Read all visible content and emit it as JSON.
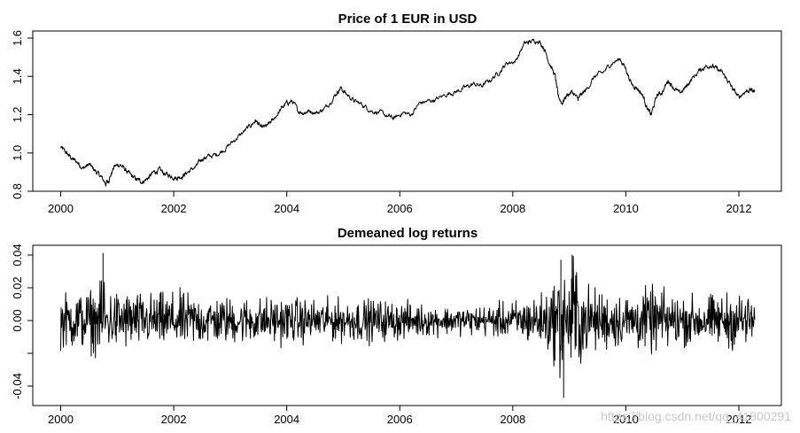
{
  "chart_data": [
    {
      "type": "line",
      "title": "Price of 1 EUR in USD",
      "xlabel": "",
      "ylabel": "",
      "xlim": [
        2000.0,
        2012.3
      ],
      "ylim": [
        0.8,
        1.62
      ],
      "x_ticks": [
        2000,
        2002,
        2004,
        2006,
        2008,
        2010,
        2012
      ],
      "y_ticks": [
        0.8,
        1.0,
        1.2,
        1.4,
        1.6
      ],
      "y_tick_labels": [
        "0.8",
        "1.0",
        "1.2",
        "1.4",
        "1.6"
      ],
      "grid": false,
      "series": [
        {
          "x": [
            2000.0,
            2000.1,
            2000.2,
            2000.3,
            2000.4,
            2000.5,
            2000.6,
            2000.7,
            2000.8,
            2000.85,
            2000.95,
            2001.05,
            2001.15,
            2001.25,
            2001.35,
            2001.45,
            2001.55,
            2001.65,
            2001.75,
            2001.85,
            2001.95,
            2002.05,
            2002.15,
            2002.25,
            2002.4,
            2002.5,
            2002.6,
            2002.75,
            2002.9,
            2003.05,
            2003.2,
            2003.35,
            2003.45,
            2003.55,
            2003.65,
            2003.75,
            2003.9,
            2004.0,
            2004.1,
            2004.2,
            2004.3,
            2004.4,
            2004.55,
            2004.7,
            2004.85,
            2004.95,
            2005.05,
            2005.2,
            2005.35,
            2005.5,
            2005.65,
            2005.8,
            2005.9,
            2006.05,
            2006.2,
            2006.35,
            2006.5,
            2006.65,
            2006.85,
            2007.0,
            2007.15,
            2007.3,
            2007.45,
            2007.6,
            2007.75,
            2007.9,
            2008.05,
            2008.2,
            2008.3,
            2008.45,
            2008.55,
            2008.65,
            2008.75,
            2008.8,
            2008.87,
            2008.95,
            2009.05,
            2009.15,
            2009.2,
            2009.3,
            2009.45,
            2009.6,
            2009.75,
            2009.9,
            2010.0,
            2010.1,
            2010.2,
            2010.3,
            2010.4,
            2010.45,
            2010.55,
            2010.65,
            2010.75,
            2010.85,
            2010.95,
            2011.05,
            2011.15,
            2011.3,
            2011.4,
            2011.5,
            2011.6,
            2011.7,
            2011.8,
            2011.9,
            2012.0,
            2012.1,
            2012.2,
            2012.28
          ],
          "values": [
            1.03,
            1.0,
            0.97,
            0.95,
            0.92,
            0.94,
            0.91,
            0.88,
            0.84,
            0.86,
            0.93,
            0.94,
            0.91,
            0.88,
            0.86,
            0.85,
            0.87,
            0.9,
            0.91,
            0.89,
            0.88,
            0.87,
            0.88,
            0.9,
            0.93,
            0.97,
            0.98,
            0.99,
            1.02,
            1.06,
            1.1,
            1.14,
            1.17,
            1.13,
            1.14,
            1.17,
            1.23,
            1.26,
            1.27,
            1.22,
            1.21,
            1.22,
            1.21,
            1.24,
            1.3,
            1.34,
            1.31,
            1.27,
            1.25,
            1.22,
            1.21,
            1.19,
            1.18,
            1.21,
            1.2,
            1.26,
            1.27,
            1.28,
            1.31,
            1.32,
            1.34,
            1.36,
            1.35,
            1.38,
            1.42,
            1.47,
            1.48,
            1.57,
            1.58,
            1.59,
            1.55,
            1.47,
            1.4,
            1.3,
            1.26,
            1.3,
            1.32,
            1.28,
            1.3,
            1.33,
            1.4,
            1.42,
            1.47,
            1.49,
            1.44,
            1.36,
            1.34,
            1.3,
            1.22,
            1.2,
            1.3,
            1.32,
            1.38,
            1.34,
            1.31,
            1.34,
            1.38,
            1.43,
            1.45,
            1.46,
            1.44,
            1.42,
            1.38,
            1.33,
            1.29,
            1.32,
            1.33,
            1.32
          ]
        }
      ]
    },
    {
      "type": "line",
      "title": "Demeaned log returns",
      "xlabel": "",
      "ylabel": "",
      "xlim": [
        2000.0,
        2012.3
      ],
      "ylim": [
        -0.049,
        0.043
      ],
      "x_ticks": [
        2000,
        2002,
        2004,
        2006,
        2008,
        2010,
        2012
      ],
      "y_ticks": [
        -0.04,
        -0.02,
        0.0,
        0.02,
        0.04
      ],
      "y_tick_labels": [
        "-0.04",
        "",
        "0.00",
        "0.02",
        "0.04"
      ],
      "grid": false,
      "series": [
        {
          "x": [
            2000.0,
            2000.25,
            2000.5,
            2000.7,
            2000.75,
            2000.8,
            2001.0,
            2001.25,
            2001.5,
            2001.75,
            2002.0,
            2002.5,
            2003.0,
            2003.5,
            2004.0,
            2004.5,
            2005.0,
            2005.5,
            2006.0,
            2006.5,
            2007.0,
            2007.5,
            2008.0,
            2008.5,
            2008.8,
            2008.85,
            2008.9,
            2008.92,
            2009.0,
            2009.05,
            2009.25,
            2009.5,
            2010.0,
            2010.5,
            2011.0,
            2011.5,
            2012.0,
            2012.28
          ],
          "amplitude": [
            0.014,
            0.015,
            0.016,
            0.017,
            0.041,
            0.016,
            0.016,
            0.015,
            0.014,
            0.014,
            0.015,
            0.013,
            0.012,
            0.012,
            0.012,
            0.011,
            0.011,
            0.011,
            0.01,
            0.008,
            0.007,
            0.008,
            0.01,
            0.014,
            0.022,
            0.037,
            0.047,
            0.022,
            0.021,
            0.04,
            0.019,
            0.016,
            0.014,
            0.017,
            0.013,
            0.013,
            0.015,
            0.012
          ]
        }
      ]
    }
  ],
  "watermark": "https://blog.csdn.net/qq_41800291"
}
